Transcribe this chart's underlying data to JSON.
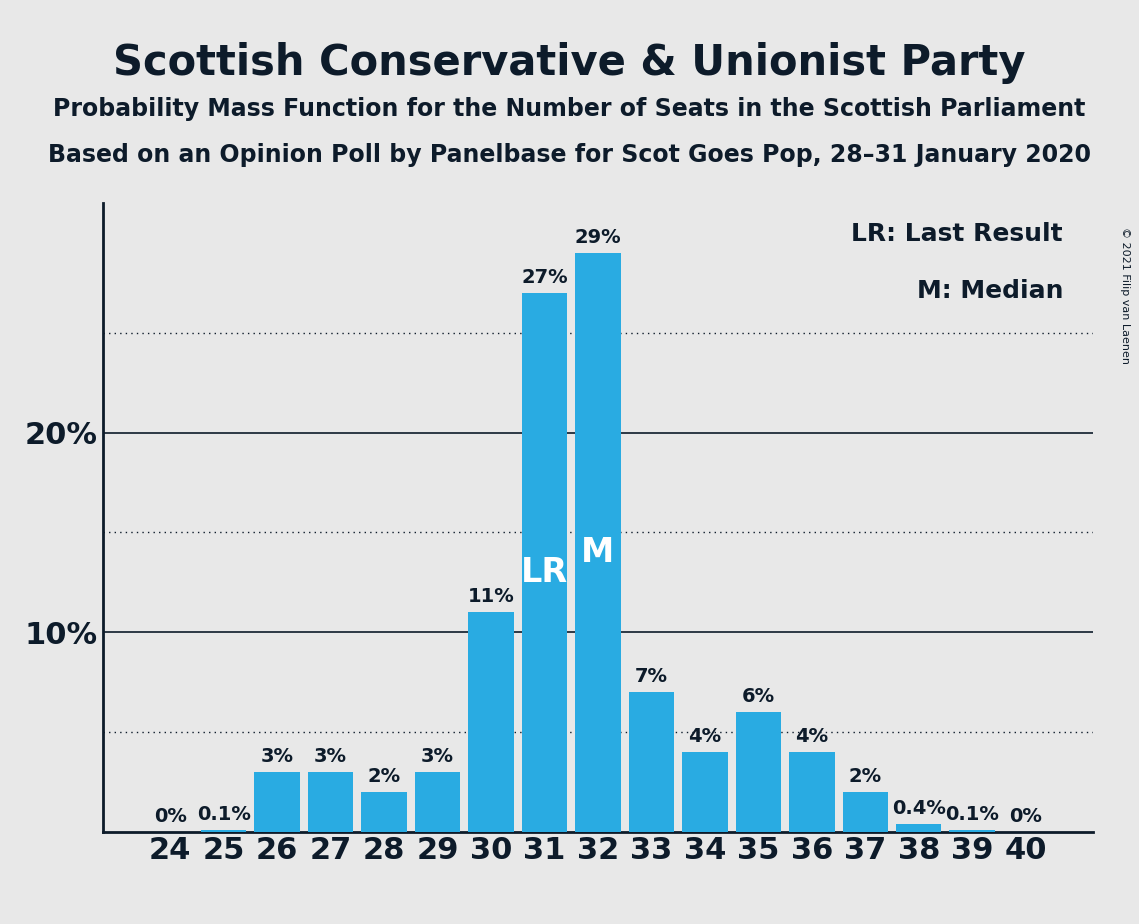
{
  "title": "Scottish Conservative & Unionist Party",
  "subtitle1": "Probability Mass Function for the Number of Seats in the Scottish Parliament",
  "subtitle2": "Based on an Opinion Poll by Panelbase for Scot Goes Pop, 28–31 January 2020",
  "copyright": "© 2021 Filip van Laenen",
  "categories": [
    24,
    25,
    26,
    27,
    28,
    29,
    30,
    31,
    32,
    33,
    34,
    35,
    36,
    37,
    38,
    39,
    40
  ],
  "values": [
    0.0,
    0.1,
    3.0,
    3.0,
    2.0,
    3.0,
    11.0,
    27.0,
    29.0,
    7.0,
    4.0,
    6.0,
    4.0,
    2.0,
    0.4,
    0.1,
    0.0
  ],
  "labels": [
    "0%",
    "0.1%",
    "3%",
    "3%",
    "2%",
    "3%",
    "11%",
    "27%",
    "29%",
    "7%",
    "4%",
    "6%",
    "4%",
    "2%",
    "0.4%",
    "0.1%",
    "0%"
  ],
  "bar_color": "#29ABE2",
  "background_color": "#E8E8E8",
  "text_color": "#0D1B2A",
  "lr_index": 7,
  "median_index": 8,
  "lr_label": "LR",
  "median_label": "M",
  "legend_lr": "LR: Last Result",
  "legend_m": "M: Median",
  "ymax": 31.5,
  "solid_gridlines": [
    10,
    20
  ],
  "dotted_gridlines": [
    5,
    15,
    25
  ],
  "title_fontsize": 30,
  "subtitle_fontsize": 17,
  "axis_label_fontsize": 22,
  "bar_label_fontsize": 14,
  "bar_inner_label_fontsize": 24,
  "legend_fontsize": 18
}
